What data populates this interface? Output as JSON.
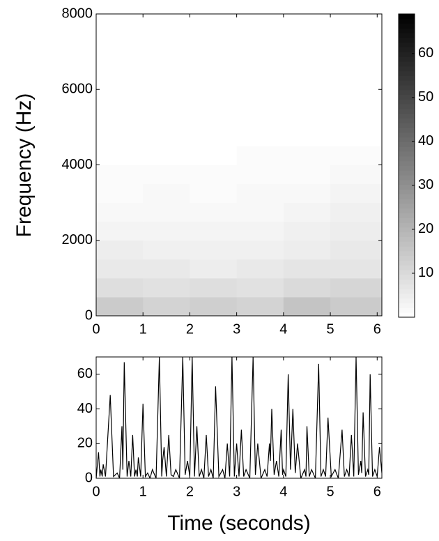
{
  "chart_data": [
    {
      "type": "heatmap",
      "ylabel": "Frequency (Hz)",
      "x_bins": [
        0,
        1,
        2,
        3,
        4,
        5,
        6.1
      ],
      "y_bins": [
        0,
        500,
        1000,
        1500,
        2000,
        2500,
        3000,
        3500,
        4000,
        4500,
        5000,
        5500,
        6000,
        6500,
        7000,
        7500,
        8000
      ],
      "z": [
        [
          14,
          12,
          13,
          12,
          16,
          14
        ],
        [
          9,
          8,
          9,
          8,
          10,
          11
        ],
        [
          6,
          6,
          5,
          6,
          7,
          7
        ],
        [
          5,
          4,
          4,
          4,
          5,
          6
        ],
        [
          3,
          3,
          3,
          3,
          4,
          5
        ],
        [
          2,
          2,
          2,
          2,
          3,
          4
        ],
        [
          1,
          2,
          1,
          2,
          2,
          3
        ],
        [
          1,
          1,
          1,
          1,
          1,
          2
        ],
        [
          0,
          0,
          0,
          1,
          1,
          1
        ],
        [
          0,
          0,
          0,
          0,
          0,
          0
        ],
        [
          0,
          0,
          0,
          0,
          0,
          0
        ],
        [
          0,
          0,
          0,
          0,
          0,
          0
        ],
        [
          0,
          0,
          0,
          0,
          0,
          0
        ],
        [
          0,
          0,
          0,
          0,
          0,
          0
        ],
        [
          0,
          0,
          0,
          0,
          0,
          0
        ],
        [
          0,
          0,
          0,
          0,
          0,
          0
        ]
      ],
      "xlim": [
        0,
        6.1
      ],
      "xticks": [
        0,
        1,
        2,
        3,
        4,
        5,
        6
      ],
      "ylim": [
        0,
        8000
      ],
      "yticks": [
        0,
        2000,
        4000,
        6000,
        8000
      ],
      "clim": [
        0,
        69
      ],
      "colorbar_ticks": [
        10,
        20,
        30,
        40,
        50,
        60
      ],
      "colormap": "gray_r"
    },
    {
      "type": "line",
      "xlabel": "Time (seconds)",
      "color": "#000000",
      "x": [
        0,
        0.05,
        0.08,
        0.1,
        0.13,
        0.15,
        0.2,
        0.3,
        0.37,
        0.45,
        0.5,
        0.55,
        0.57,
        0.6,
        0.66,
        0.7,
        0.74,
        0.78,
        0.82,
        0.85,
        0.88,
        0.9,
        0.95,
        1.0,
        1.05,
        1.1,
        1.15,
        1.2,
        1.28,
        1.35,
        1.4,
        1.42,
        1.45,
        1.5,
        1.55,
        1.6,
        1.65,
        1.7,
        1.78,
        1.85,
        1.9,
        1.95,
        2.0,
        2.05,
        2.1,
        2.15,
        2.2,
        2.25,
        2.3,
        2.35,
        2.4,
        2.45,
        2.5,
        2.55,
        2.62,
        2.7,
        2.75,
        2.8,
        2.85,
        2.9,
        2.95,
        3.0,
        3.05,
        3.1,
        3.15,
        3.2,
        3.28,
        3.35,
        3.4,
        3.45,
        3.52,
        3.6,
        3.65,
        3.7,
        3.72,
        3.75,
        3.8,
        3.85,
        3.9,
        3.95,
        3.98,
        4.0,
        4.05,
        4.1,
        4.15,
        4.2,
        4.25,
        4.3,
        4.37,
        4.45,
        4.48,
        4.5,
        4.55,
        4.6,
        4.68,
        4.75,
        4.8,
        4.85,
        4.9,
        4.95,
        5.02,
        5.1,
        5.17,
        5.25,
        5.3,
        5.35,
        5.4,
        5.45,
        5.5,
        5.55,
        5.6,
        5.65,
        5.67,
        5.7,
        5.75,
        5.8,
        5.82,
        5.85,
        5.9,
        5.95,
        6.0,
        6.05,
        6.1
      ],
      "values": [
        0,
        15,
        1,
        5,
        1,
        8,
        1,
        48,
        1,
        3,
        0,
        30,
        5,
        67,
        1,
        10,
        1,
        25,
        1,
        5,
        1,
        12,
        1,
        43,
        1,
        3,
        0,
        5,
        0,
        70,
        1,
        10,
        18,
        1,
        25,
        2,
        1,
        5,
        0,
        70,
        2,
        10,
        1,
        70,
        1,
        30,
        1,
        5,
        0,
        25,
        1,
        5,
        0,
        53,
        1,
        5,
        0,
        20,
        1,
        70,
        1,
        20,
        1,
        28,
        1,
        5,
        0,
        70,
        2,
        20,
        0,
        5,
        1,
        20,
        10,
        40,
        2,
        10,
        1,
        28,
        2,
        5,
        1,
        60,
        5,
        40,
        3,
        20,
        0,
        5,
        1,
        30,
        1,
        5,
        0,
        66,
        1,
        5,
        1,
        35,
        1,
        5,
        0,
        28,
        1,
        5,
        1,
        25,
        1,
        70,
        2,
        10,
        3,
        38,
        1,
        5,
        2,
        60,
        1,
        5,
        1,
        18,
        3
      ],
      "xlim": [
        0,
        6.1
      ],
      "xticks": [
        0,
        1,
        2,
        3,
        4,
        5,
        6
      ],
      "ylim": [
        0,
        70
      ],
      "yticks": [
        0,
        20,
        40,
        60
      ]
    }
  ]
}
